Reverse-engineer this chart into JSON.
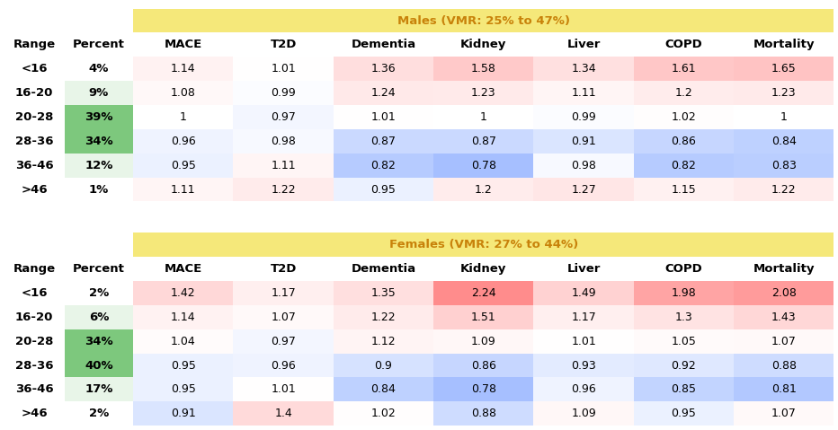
{
  "male_title": "Males (VMR: 25% to 47%)",
  "female_title": "Females (VMR: 27% to 44%)",
  "col_headers": [
    "MACE",
    "T2D",
    "Dementia",
    "Kidney",
    "Liver",
    "COPD",
    "Mortality"
  ],
  "row_labels_male": [
    "<16",
    "16-20",
    "20-28",
    "28-36",
    "36-46",
    ">46"
  ],
  "row_percents_male": [
    "4%",
    "9%",
    "39%",
    "34%",
    "12%",
    "1%"
  ],
  "row_labels_female": [
    "<16",
    "16-20",
    "20-28",
    "28-36",
    "36-46",
    ">46"
  ],
  "row_percents_female": [
    "2%",
    "6%",
    "34%",
    "40%",
    "17%",
    "2%"
  ],
  "male_data": [
    [
      1.14,
      1.01,
      1.36,
      1.58,
      1.34,
      1.61,
      1.65
    ],
    [
      1.08,
      0.99,
      1.24,
      1.23,
      1.11,
      1.2,
      1.23
    ],
    [
      1.0,
      0.97,
      1.01,
      1.0,
      0.99,
      1.02,
      1.0
    ],
    [
      0.96,
      0.98,
      0.87,
      0.87,
      0.91,
      0.86,
      0.84
    ],
    [
      0.95,
      1.11,
      0.82,
      0.78,
      0.98,
      0.82,
      0.83
    ],
    [
      1.11,
      1.22,
      0.95,
      1.2,
      1.27,
      1.15,
      1.22
    ]
  ],
  "female_data": [
    [
      1.42,
      1.17,
      1.35,
      2.24,
      1.49,
      1.98,
      2.08
    ],
    [
      1.14,
      1.07,
      1.22,
      1.51,
      1.17,
      1.3,
      1.43
    ],
    [
      1.04,
      0.97,
      1.12,
      1.09,
      1.01,
      1.05,
      1.07
    ],
    [
      0.95,
      0.96,
      0.9,
      0.86,
      0.93,
      0.92,
      0.88
    ],
    [
      0.95,
      1.01,
      0.84,
      0.78,
      0.96,
      0.85,
      0.81
    ],
    [
      0.91,
      1.4,
      1.02,
      0.88,
      1.09,
      0.95,
      1.07
    ]
  ],
  "male_percent_colors": [
    "#ffffff",
    "#e8f5e8",
    "#7dc87d",
    "#7dc87d",
    "#e8f5e8",
    "#ffffff"
  ],
  "female_percent_colors": [
    "#ffffff",
    "#e8f5e8",
    "#7dc87d",
    "#7dc87d",
    "#e8f5e8",
    "#ffffff"
  ],
  "title_bg": "#f5e87a",
  "title_color": "#c8820a",
  "vmin": 0.78,
  "vmax": 2.24
}
